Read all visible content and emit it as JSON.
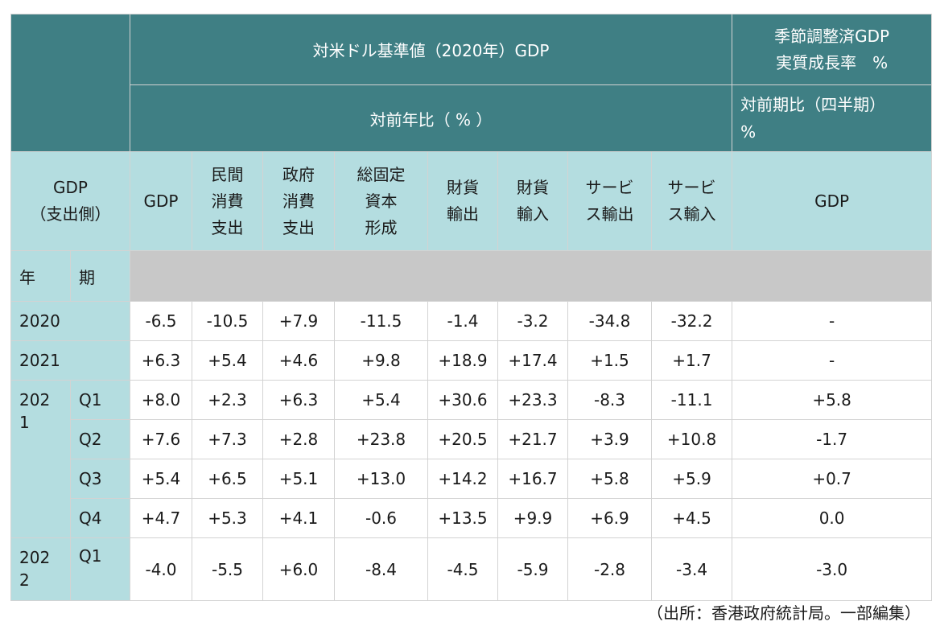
{
  "header": {
    "group_title": "対米ドル基準値（2020年）GDP",
    "yoy_label": "対前年比（ % ）",
    "sa_title_line1": "季節調整済GDP",
    "sa_title_line2": "実質成長率　%",
    "qoq_line1": "対前期比（四半期）",
    "qoq_line2": "%"
  },
  "columns": {
    "gdp_line1": "GDP",
    "gdp_line2": "（支出側）",
    "gdp": "GDP",
    "priv_1": "民間",
    "priv_2": "消費",
    "priv_3": "支出",
    "gov_1": "政府",
    "gov_2": "消費",
    "gov_3": "支出",
    "gfcf_1": "総固定",
    "gfcf_2": "資本",
    "gfcf_3": "形成",
    "goods_ex_1": "財貨",
    "goods_ex_2": "輸出",
    "goods_im_1": "財貨",
    "goods_im_2": "輸入",
    "svc_ex_1": "サービ",
    "svc_ex_2": "ス輸出",
    "svc_im_1": "サービ",
    "svc_im_2": "ス輸入",
    "sa_gdp": "GDP"
  },
  "row_header": {
    "year": "年",
    "period": "期"
  },
  "rows": [
    {
      "year": "2020",
      "values": [
        "-6.5",
        "-10.5",
        "+7.9",
        "-11.5",
        "-1.4",
        "-3.2",
        "-34.8",
        "-32.2",
        "-"
      ]
    },
    {
      "year": "2021",
      "values": [
        "+6.3",
        "+5.4",
        "+4.6",
        "+9.8",
        "+18.9",
        "+17.4",
        "+1.5",
        "+1.7",
        "-"
      ]
    },
    {
      "year_line1": "202",
      "year_line2": "1",
      "quarter": "Q1",
      "values": [
        "+8.0",
        "+2.3",
        "+6.3",
        "+5.4",
        "+30.6",
        "+23.3",
        "-8.3",
        "-11.1",
        "+5.8"
      ]
    },
    {
      "quarter": "Q2",
      "values": [
        "+7.6",
        "+7.3",
        "+2.8",
        "+23.8",
        "+20.5",
        "+21.7",
        "+3.9",
        "+10.8",
        "-1.7"
      ]
    },
    {
      "quarter": "Q3",
      "values": [
        "+5.4",
        "+6.5",
        "+5.1",
        "+13.0",
        "+14.2",
        "+16.7",
        "+5.8",
        "+5.9",
        "+0.7"
      ]
    },
    {
      "quarter": "Q4",
      "values": [
        "+4.7",
        "+5.3",
        "+4.1",
        "-0.6",
        "+13.5",
        "+9.9",
        "+6.9",
        "+4.5",
        "0.0"
      ]
    },
    {
      "year_line1": "202",
      "year_line2": "2",
      "quarter": "Q1",
      "values": [
        "-4.0",
        "-5.5",
        "+6.0",
        "-8.4",
        "-4.5",
        "-5.9",
        "-2.8",
        "-3.4",
        "-3.0"
      ]
    }
  ],
  "source": "（出所：香港政府統計局。一部編集）"
}
